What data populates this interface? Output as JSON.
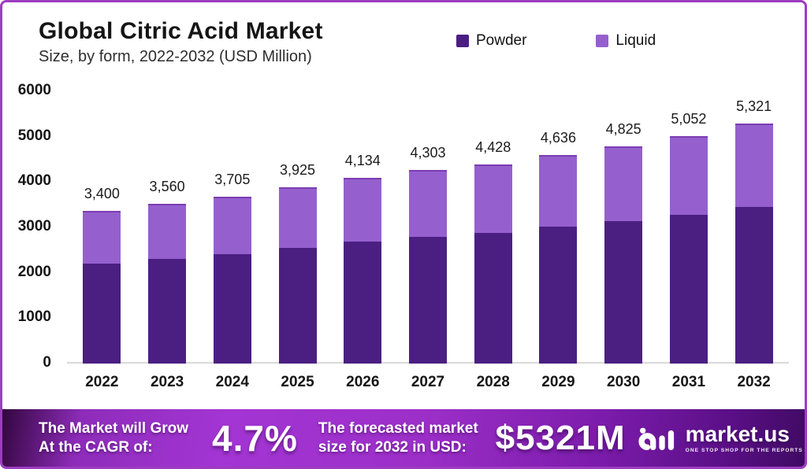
{
  "header": {
    "title": "Global Citric Acid Market",
    "subtitle": "Size, by form, 2022-2032 (USD Million)"
  },
  "legend": [
    {
      "label": "Powder",
      "color": "#4B1F82"
    },
    {
      "label": "Liquid",
      "color": "#9560CE"
    }
  ],
  "chart_data": {
    "type": "bar",
    "stacked": true,
    "title": "Global Citric Acid Market Size, by form, 2022-2032 (USD Million)",
    "categories": [
      "2022",
      "2023",
      "2024",
      "2025",
      "2026",
      "2027",
      "2028",
      "2029",
      "2030",
      "2031",
      "2032"
    ],
    "series": [
      {
        "name": "Powder",
        "color": "#4B1F82",
        "values": [
          2210,
          2314,
          2408,
          2551,
          2687,
          2797,
          2878,
          3013,
          3136,
          3284,
          3459
        ]
      },
      {
        "name": "Liquid",
        "color": "#9560CE",
        "values": [
          1190,
          1246,
          1297,
          1374,
          1447,
          1506,
          1550,
          1623,
          1689,
          1768,
          1862
        ]
      }
    ],
    "totals": [
      3400,
      3560,
      3705,
      3925,
      4134,
      4303,
      4428,
      4636,
      4825,
      5052,
      5321
    ],
    "total_labels": [
      "3,400",
      "3,560",
      "3,705",
      "3,925",
      "4,134",
      "4,303",
      "4,428",
      "4,636",
      "4,825",
      "5,052",
      "5,321"
    ],
    "xlabel": "",
    "ylabel": "",
    "ylim": [
      0,
      6000
    ],
    "yticks": [
      0,
      1000,
      2000,
      3000,
      4000,
      5000,
      6000
    ],
    "grid": false,
    "legend_position": "top"
  },
  "banner": {
    "left_line1": "The Market will Grow",
    "left_line2": "At the CAGR of:",
    "cagr": "4.7%",
    "mid_line1": "The forecasted market",
    "mid_line2": "size for 2032 in USD:",
    "value": "$5321M",
    "brand": "market.us",
    "tagline": "ONE STOP SHOP FOR THE REPORTS"
  },
  "colors": {
    "powder": "#4B1F82",
    "liquid": "#9560CE",
    "liquid_cap": "#7b3cb2",
    "axis_line": "#d9d9d9",
    "border": "#9c3dc0",
    "banner_mid": "#9c2fc8",
    "banner_dark": "#3f0a62",
    "text_dark": "#151515"
  }
}
